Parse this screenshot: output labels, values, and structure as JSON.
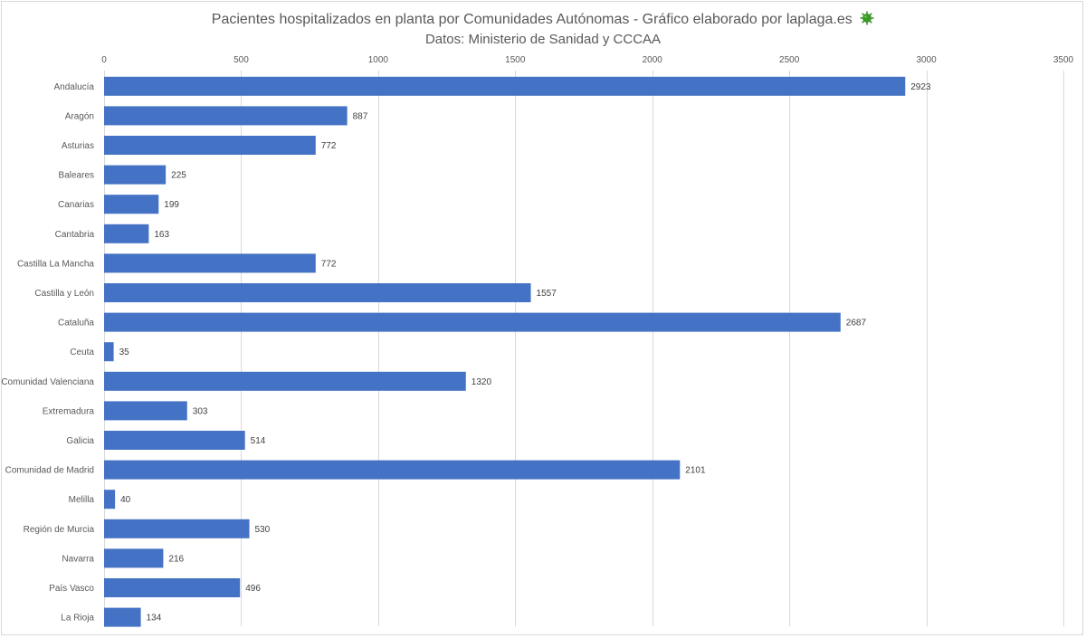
{
  "chart_data": {
    "type": "bar",
    "orientation": "horizontal",
    "title": "Pacientes hospitalizados en planta por Comunidades Autónomas - Gráfico elaborado por laplaga.es",
    "subtitle": "Datos: Ministerio de Sanidad y CCCAA",
    "title_icon": "virus-icon",
    "categories": [
      "Andalucía",
      "Aragón",
      "Asturias",
      "Baleares",
      "Canarias",
      "Cantabria",
      "Castilla La Mancha",
      "Castilla y León",
      "Cataluña",
      "Ceuta",
      "Comunidad Valenciana",
      "Extremadura",
      "Galicia",
      "Comunidad de Madrid",
      "Melilla",
      "Región de Murcia",
      "Navarra",
      "País Vasco",
      "La Rioja"
    ],
    "values": [
      2923,
      887,
      772,
      225,
      199,
      163,
      772,
      1557,
      2687,
      35,
      1320,
      303,
      514,
      2101,
      40,
      530,
      216,
      496,
      134
    ],
    "xlim": [
      0,
      3500
    ],
    "x_ticks": [
      0,
      500,
      1000,
      1500,
      2000,
      2500,
      3000,
      3500
    ],
    "x_axis_position": "top",
    "grid": true,
    "data_labels": true,
    "legend": "none",
    "colors": {
      "bar": "#4472c4",
      "grid": "#d9d9d9",
      "text": "#595959",
      "virus": "#2e7d1e"
    }
  }
}
